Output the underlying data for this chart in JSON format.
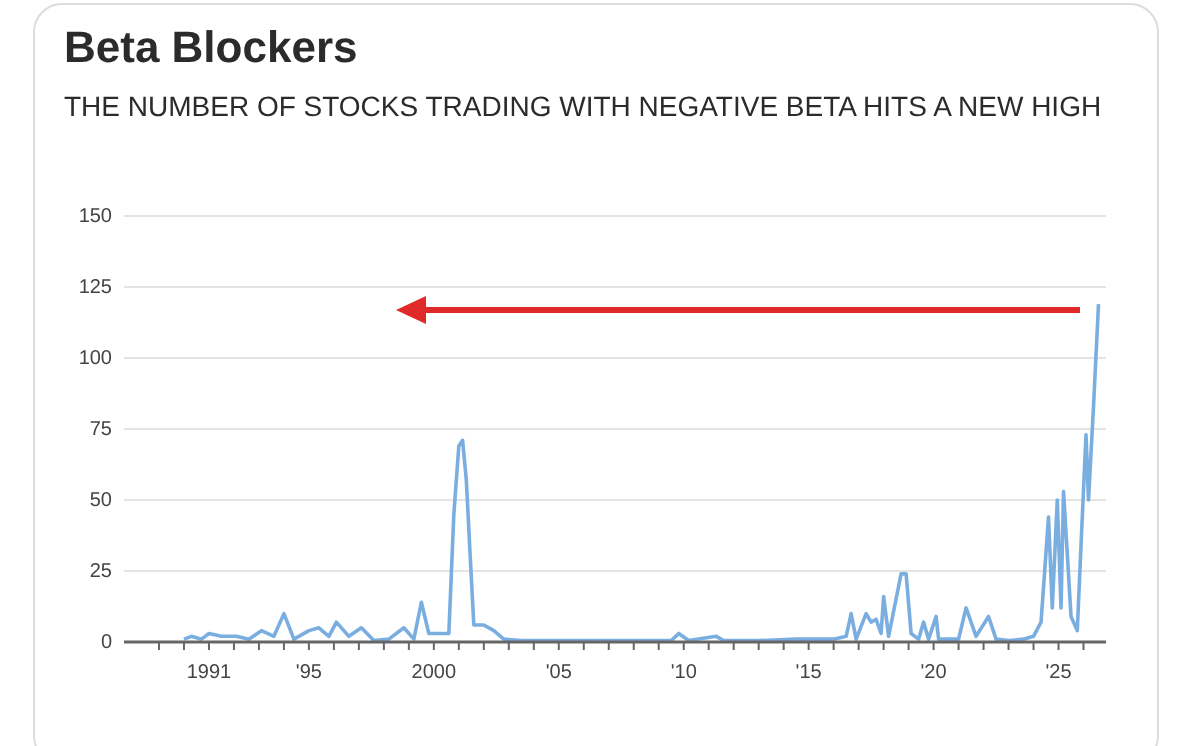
{
  "chart_data": {
    "type": "line",
    "title": "Beta Blockers",
    "subtitle": "THE NUMBER OF STOCKS TRADING WITH NEGATIVE BETA HITS A NEW HIGH",
    "x": [
      1990.0,
      1990.3,
      1990.7,
      1991.0,
      1991.5,
      1992.1,
      1992.6,
      1993.1,
      1993.6,
      1994.0,
      1994.4,
      1995.0,
      1995.4,
      1995.8,
      1996.1,
      1996.6,
      1997.1,
      1997.6,
      1998.2,
      1998.8,
      1999.2,
      1999.5,
      1999.8,
      2000.2,
      2000.6,
      2000.8,
      2001.0,
      2001.15,
      2001.3,
      2001.45,
      2001.6,
      2002.0,
      2002.4,
      2002.8,
      2003.5,
      2005.0,
      2007.0,
      2009.5,
      2009.8,
      2010.2,
      2011.3,
      2011.6,
      2013.0,
      2014.5,
      2016.0,
      2016.5,
      2016.7,
      2016.9,
      2017.3,
      2017.5,
      2017.7,
      2017.9,
      2018.0,
      2018.2,
      2018.7,
      2018.9,
      2019.1,
      2019.4,
      2019.6,
      2019.8,
      2020.1,
      2020.2,
      2021.0,
      2021.3,
      2021.7,
      2022.2,
      2022.5,
      2023.0,
      2023.6,
      2024.0,
      2024.3,
      2024.6,
      2024.75,
      2024.95,
      2025.1,
      2025.2,
      2025.5,
      2025.75,
      2025.9,
      2026.1,
      2026.2,
      2026.4,
      2026.6
    ],
    "series": [
      {
        "color": "#7aaee0",
        "values": [
          1,
          2,
          1,
          3,
          2,
          2,
          1,
          4,
          2,
          10,
          1,
          4,
          5,
          2,
          7,
          2,
          5,
          0.5,
          1,
          5,
          1,
          14,
          3,
          3,
          3,
          45,
          69,
          71,
          57,
          31,
          6,
          6,
          4,
          1,
          0.5,
          0.5,
          0.5,
          0.5,
          3,
          0.5,
          2,
          0.5,
          0.5,
          1,
          1,
          2,
          10,
          1,
          10,
          7,
          8,
          3,
          16,
          2,
          24,
          24,
          3,
          1,
          7,
          1,
          9,
          1,
          1,
          12,
          2,
          9,
          1,
          0.5,
          1,
          2,
          7,
          44,
          12,
          50,
          12,
          53,
          9,
          4,
          34,
          73,
          50,
          83,
          119
        ]
      }
    ],
    "xlim": [
      1987.6,
      2026.9
    ],
    "ylim": [
      0,
      150
    ],
    "yticks": [
      0,
      25,
      50,
      75,
      100,
      125,
      150
    ],
    "xticks": [
      {
        "value": 1989,
        "label": null
      },
      {
        "value": 1990,
        "label": null
      },
      {
        "value": 1991,
        "label": "1991"
      },
      {
        "value": 1992,
        "label": null
      },
      {
        "value": 1993,
        "label": null
      },
      {
        "value": 1994,
        "label": null
      },
      {
        "value": 1995,
        "label": "'95"
      },
      {
        "value": 1996,
        "label": null
      },
      {
        "value": 1997,
        "label": null
      },
      {
        "value": 1998,
        "label": null
      },
      {
        "value": 1999,
        "label": null
      },
      {
        "value": 2000,
        "label": "2000"
      },
      {
        "value": 2001,
        "label": null
      },
      {
        "value": 2002,
        "label": null
      },
      {
        "value": 2003,
        "label": null
      },
      {
        "value": 2004,
        "label": null
      },
      {
        "value": 2005,
        "label": "'05"
      },
      {
        "value": 2006,
        "label": null
      },
      {
        "value": 2007,
        "label": null
      },
      {
        "value": 2008,
        "label": null
      },
      {
        "value": 2009,
        "label": null
      },
      {
        "value": 2010,
        "label": "'10"
      },
      {
        "value": 2011,
        "label": null
      },
      {
        "value": 2012,
        "label": null
      },
      {
        "value": 2013,
        "label": null
      },
      {
        "value": 2014,
        "label": null
      },
      {
        "value": 2015,
        "label": "'15"
      },
      {
        "value": 2016,
        "label": null
      },
      {
        "value": 2017,
        "label": null
      },
      {
        "value": 2018,
        "label": null
      },
      {
        "value": 2019,
        "label": null
      },
      {
        "value": 2020,
        "label": "'20"
      },
      {
        "value": 2021,
        "label": null
      },
      {
        "value": 2022,
        "label": null
      },
      {
        "value": 2023,
        "label": null
      },
      {
        "value": 2024,
        "label": null
      },
      {
        "value": 2025,
        "label": "'25"
      },
      {
        "value": 2026,
        "label": null
      }
    ],
    "grid": "y",
    "marker": "none",
    "line_style": "solid"
  }
}
